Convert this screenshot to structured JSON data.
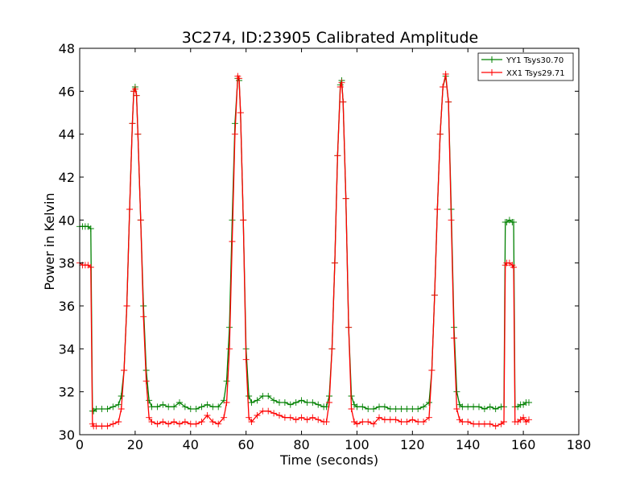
{
  "chart_data": {
    "type": "line",
    "title": "3C274, ID:23905 Calibrated Amplitude",
    "xlabel": "Time (seconds)",
    "ylabel": "Power in Kelvin",
    "xlim": [
      0,
      180
    ],
    "ylim": [
      30,
      48
    ],
    "xticks": [
      0,
      20,
      40,
      60,
      80,
      100,
      120,
      140,
      160,
      180
    ],
    "yticks": [
      30,
      32,
      34,
      36,
      38,
      40,
      42,
      44,
      46,
      48
    ],
    "xtick_labels": [
      "0",
      "20",
      "40",
      "60",
      "80",
      "100",
      "120",
      "140",
      "160",
      "180"
    ],
    "ytick_labels": [
      "30",
      "32",
      "34",
      "36",
      "38",
      "40",
      "42",
      "44",
      "46",
      "48"
    ],
    "grid": false,
    "legend_position": "top-right",
    "marker": "+",
    "series": [
      {
        "name": "YY1 Tsys30.70",
        "color": "#008000",
        "points": [
          [
            0,
            39.7
          ],
          [
            1,
            39.7
          ],
          [
            2,
            39.7
          ],
          [
            3,
            39.7
          ],
          [
            4,
            39.6
          ],
          [
            4.6,
            31.1
          ],
          [
            5,
            31.1
          ],
          [
            6,
            31.2
          ],
          [
            8,
            31.2
          ],
          [
            10,
            31.2
          ],
          [
            12,
            31.3
          ],
          [
            14,
            31.4
          ],
          [
            15,
            31.8
          ],
          [
            16,
            33.0
          ],
          [
            17,
            36.0
          ],
          [
            18,
            40.5
          ],
          [
            19,
            44.5
          ],
          [
            19.5,
            46.0
          ],
          [
            20,
            46.2
          ],
          [
            20.5,
            45.8
          ],
          [
            21,
            44.0
          ],
          [
            22,
            40.0
          ],
          [
            23,
            36.0
          ],
          [
            24,
            33.0
          ],
          [
            25,
            31.6
          ],
          [
            26,
            31.3
          ],
          [
            28,
            31.3
          ],
          [
            30,
            31.4
          ],
          [
            32,
            31.3
          ],
          [
            34,
            31.3
          ],
          [
            36,
            31.5
          ],
          [
            38,
            31.3
          ],
          [
            40,
            31.2
          ],
          [
            42,
            31.2
          ],
          [
            44,
            31.3
          ],
          [
            46,
            31.4
          ],
          [
            48,
            31.3
          ],
          [
            50,
            31.3
          ],
          [
            52,
            31.6
          ],
          [
            53,
            32.5
          ],
          [
            54,
            35.0
          ],
          [
            55,
            40.0
          ],
          [
            56,
            44.5
          ],
          [
            57,
            46.6
          ],
          [
            57.5,
            46.5
          ],
          [
            58,
            45.0
          ],
          [
            59,
            40.0
          ],
          [
            60,
            34.0
          ],
          [
            61,
            31.8
          ],
          [
            62,
            31.5
          ],
          [
            64,
            31.6
          ],
          [
            66,
            31.8
          ],
          [
            68,
            31.8
          ],
          [
            70,
            31.6
          ],
          [
            72,
            31.5
          ],
          [
            74,
            31.5
          ],
          [
            76,
            31.4
          ],
          [
            78,
            31.5
          ],
          [
            80,
            31.6
          ],
          [
            82,
            31.5
          ],
          [
            84,
            31.5
          ],
          [
            86,
            31.4
          ],
          [
            88,
            31.3
          ],
          [
            89,
            31.3
          ],
          [
            90,
            31.8
          ],
          [
            91,
            34.0
          ],
          [
            92,
            38.0
          ],
          [
            93,
            43.0
          ],
          [
            94,
            46.3
          ],
          [
            94.5,
            46.5
          ],
          [
            95,
            45.5
          ],
          [
            96,
            41.0
          ],
          [
            97,
            35.0
          ],
          [
            98,
            31.8
          ],
          [
            99,
            31.4
          ],
          [
            100,
            31.3
          ],
          [
            102,
            31.3
          ],
          [
            104,
            31.2
          ],
          [
            106,
            31.2
          ],
          [
            108,
            31.3
          ],
          [
            110,
            31.3
          ],
          [
            112,
            31.2
          ],
          [
            114,
            31.2
          ],
          [
            116,
            31.2
          ],
          [
            118,
            31.2
          ],
          [
            120,
            31.2
          ],
          [
            122,
            31.2
          ],
          [
            124,
            31.3
          ],
          [
            126,
            31.5
          ],
          [
            127,
            33.0
          ],
          [
            128,
            36.5
          ],
          [
            129,
            40.5
          ],
          [
            130,
            44.0
          ],
          [
            131,
            46.2
          ],
          [
            132,
            46.7
          ],
          [
            133,
            45.5
          ],
          [
            134,
            40.5
          ],
          [
            135,
            35.0
          ],
          [
            136,
            32.0
          ],
          [
            137,
            31.4
          ],
          [
            138,
            31.3
          ],
          [
            140,
            31.3
          ],
          [
            142,
            31.3
          ],
          [
            144,
            31.3
          ],
          [
            146,
            31.2
          ],
          [
            148,
            31.3
          ],
          [
            150,
            31.2
          ],
          [
            152,
            31.3
          ],
          [
            153,
            31.3
          ],
          [
            153.5,
            39.9
          ],
          [
            154,
            39.9
          ],
          [
            155,
            40.0
          ],
          [
            156,
            39.9
          ],
          [
            156.5,
            39.9
          ],
          [
            157,
            31.3
          ],
          [
            158,
            31.3
          ],
          [
            159,
            31.4
          ],
          [
            160,
            31.4
          ],
          [
            161,
            31.5
          ],
          [
            162,
            31.5
          ]
        ]
      },
      {
        "name": "XX1 Tsys29.71",
        "color": "#ff0000",
        "points": [
          [
            0,
            38.0
          ],
          [
            1,
            37.9
          ],
          [
            2,
            37.9
          ],
          [
            3,
            37.9
          ],
          [
            4,
            37.8
          ],
          [
            4.6,
            30.5
          ],
          [
            5,
            30.4
          ],
          [
            6,
            30.4
          ],
          [
            8,
            30.4
          ],
          [
            10,
            30.4
          ],
          [
            12,
            30.5
          ],
          [
            14,
            30.6
          ],
          [
            15,
            31.2
          ],
          [
            16,
            33.0
          ],
          [
            17,
            36.0
          ],
          [
            18,
            40.5
          ],
          [
            19,
            44.5
          ],
          [
            19.5,
            46.0
          ],
          [
            20,
            46.1
          ],
          [
            20.5,
            45.8
          ],
          [
            21,
            44.0
          ],
          [
            22,
            40.0
          ],
          [
            23,
            35.5
          ],
          [
            24,
            32.5
          ],
          [
            25,
            30.8
          ],
          [
            26,
            30.6
          ],
          [
            28,
            30.5
          ],
          [
            30,
            30.6
          ],
          [
            32,
            30.5
          ],
          [
            34,
            30.6
          ],
          [
            36,
            30.5
          ],
          [
            38,
            30.6
          ],
          [
            40,
            30.5
          ],
          [
            42,
            30.5
          ],
          [
            44,
            30.6
          ],
          [
            46,
            30.9
          ],
          [
            48,
            30.6
          ],
          [
            50,
            30.5
          ],
          [
            52,
            30.8
          ],
          [
            53,
            31.5
          ],
          [
            54,
            34.0
          ],
          [
            55,
            39.0
          ],
          [
            56,
            44.0
          ],
          [
            57,
            46.7
          ],
          [
            57.5,
            46.6
          ],
          [
            58,
            45.0
          ],
          [
            59,
            40.0
          ],
          [
            60,
            33.5
          ],
          [
            61,
            30.8
          ],
          [
            62,
            30.6
          ],
          [
            64,
            30.9
          ],
          [
            66,
            31.1
          ],
          [
            68,
            31.1
          ],
          [
            70,
            31.0
          ],
          [
            72,
            30.9
          ],
          [
            74,
            30.8
          ],
          [
            76,
            30.8
          ],
          [
            78,
            30.7
          ],
          [
            80,
            30.8
          ],
          [
            82,
            30.7
          ],
          [
            84,
            30.8
          ],
          [
            86,
            30.7
          ],
          [
            88,
            30.6
          ],
          [
            89,
            30.6
          ],
          [
            90,
            31.5
          ],
          [
            91,
            34.0
          ],
          [
            92,
            38.0
          ],
          [
            93,
            43.0
          ],
          [
            94,
            46.2
          ],
          [
            94.5,
            46.4
          ],
          [
            95,
            45.5
          ],
          [
            96,
            41.0
          ],
          [
            97,
            35.0
          ],
          [
            98,
            31.2
          ],
          [
            99,
            30.6
          ],
          [
            100,
            30.5
          ],
          [
            102,
            30.6
          ],
          [
            104,
            30.6
          ],
          [
            106,
            30.5
          ],
          [
            108,
            30.8
          ],
          [
            110,
            30.7
          ],
          [
            112,
            30.7
          ],
          [
            114,
            30.7
          ],
          [
            116,
            30.6
          ],
          [
            118,
            30.6
          ],
          [
            120,
            30.7
          ],
          [
            122,
            30.6
          ],
          [
            124,
            30.6
          ],
          [
            126,
            30.8
          ],
          [
            127,
            33.0
          ],
          [
            128,
            36.5
          ],
          [
            129,
            40.5
          ],
          [
            130,
            44.0
          ],
          [
            131,
            46.2
          ],
          [
            132,
            46.8
          ],
          [
            133,
            45.5
          ],
          [
            134,
            40.0
          ],
          [
            135,
            34.5
          ],
          [
            136,
            31.2
          ],
          [
            137,
            30.7
          ],
          [
            138,
            30.6
          ],
          [
            140,
            30.6
          ],
          [
            142,
            30.5
          ],
          [
            144,
            30.5
          ],
          [
            146,
            30.5
          ],
          [
            148,
            30.5
          ],
          [
            150,
            30.4
          ],
          [
            152,
            30.5
          ],
          [
            153,
            30.6
          ],
          [
            153.5,
            37.9
          ],
          [
            154,
            38.0
          ],
          [
            155,
            38.0
          ],
          [
            156,
            37.9
          ],
          [
            156.5,
            37.8
          ],
          [
            157,
            30.6
          ],
          [
            158,
            30.6
          ],
          [
            159,
            30.7
          ],
          [
            160,
            30.8
          ],
          [
            161,
            30.6
          ],
          [
            162,
            30.7
          ]
        ]
      }
    ]
  }
}
